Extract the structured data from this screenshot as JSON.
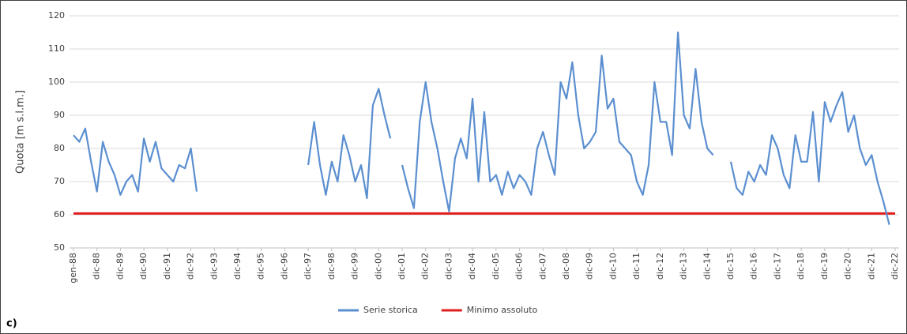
{
  "chart_data": {
    "type": "line",
    "panel_label": "c)",
    "y_label": "Quota [m s.l.m.]",
    "categories": [
      "gen-88",
      null,
      null,
      null,
      "dic-88",
      null,
      null,
      null,
      "dic-89",
      null,
      null,
      null,
      "dic-90",
      null,
      null,
      null,
      "dic-91",
      null,
      null,
      null,
      "dic-92",
      null,
      null,
      null,
      "dic-93",
      null,
      null,
      null,
      "dic-94",
      null,
      null,
      null,
      "dic-95",
      null,
      null,
      null,
      "dic-96",
      null,
      null,
      null,
      "dic-97",
      null,
      null,
      null,
      "dic-98",
      null,
      null,
      null,
      "dic-99",
      null,
      null,
      null,
      "dic-00",
      null,
      null,
      null,
      "dic-01",
      null,
      null,
      null,
      "dic-02",
      null,
      null,
      null,
      "dic-03",
      null,
      null,
      null,
      "dic-04",
      null,
      null,
      null,
      "dic-05",
      null,
      null,
      null,
      "dic-06",
      null,
      null,
      null,
      "dic-07",
      null,
      null,
      null,
      "dic-08",
      null,
      null,
      null,
      "dic-09",
      null,
      null,
      null,
      "dic-10",
      null,
      null,
      null,
      "dic-11",
      null,
      null,
      null,
      "dic-12",
      null,
      null,
      null,
      "dic-13",
      null,
      null,
      null,
      "dic-14",
      null,
      null,
      null,
      "dic-15",
      null,
      null,
      null,
      "dic-16",
      null,
      null,
      null,
      "dic-17",
      null,
      null,
      null,
      "dic-18",
      null,
      null,
      null,
      "dic-19",
      null,
      null,
      null,
      "dic-20",
      null,
      null,
      null,
      "dic-21",
      null,
      null,
      null,
      "dic-22"
    ],
    "series": [
      {
        "name": "Serie storica",
        "color": "#5b8fd0",
        "values": [
          84,
          82,
          86,
          76,
          67,
          82,
          76,
          72,
          66,
          70,
          72,
          67,
          83,
          76,
          82,
          74,
          72,
          70,
          75,
          74,
          80,
          67,
          null,
          null,
          null,
          null,
          null,
          null,
          null,
          null,
          null,
          null,
          null,
          null,
          null,
          null,
          null,
          null,
          null,
          null,
          75,
          88,
          75,
          66,
          76,
          70,
          84,
          78,
          70,
          75,
          65,
          93,
          98,
          90,
          83,
          null,
          75,
          68,
          62,
          88,
          100,
          88,
          80,
          70,
          61,
          77,
          83,
          77,
          95,
          70,
          91,
          70,
          72,
          66,
          73,
          68,
          72,
          70,
          66,
          80,
          85,
          78,
          72,
          100,
          95,
          106,
          90,
          80,
          82,
          85,
          108,
          92,
          95,
          82,
          80,
          78,
          70,
          66,
          75,
          100,
          88,
          88,
          78,
          115,
          90,
          86,
          104,
          88,
          80,
          78,
          null,
          null,
          76,
          68,
          66,
          73,
          70,
          75,
          72,
          84,
          80,
          72,
          68,
          84,
          76,
          76,
          91,
          70,
          94,
          88,
          93,
          97,
          85,
          90,
          80,
          75,
          78,
          70,
          64,
          57,
          null
        ]
      }
    ],
    "reference_lines": [
      {
        "name": "Minimo assoluto",
        "color": "#e02020",
        "value": 60.4
      }
    ],
    "ylim": [
      50,
      120
    ],
    "yticks": [
      50,
      60,
      70,
      80,
      90,
      100,
      110,
      120
    ],
    "grid": true
  }
}
